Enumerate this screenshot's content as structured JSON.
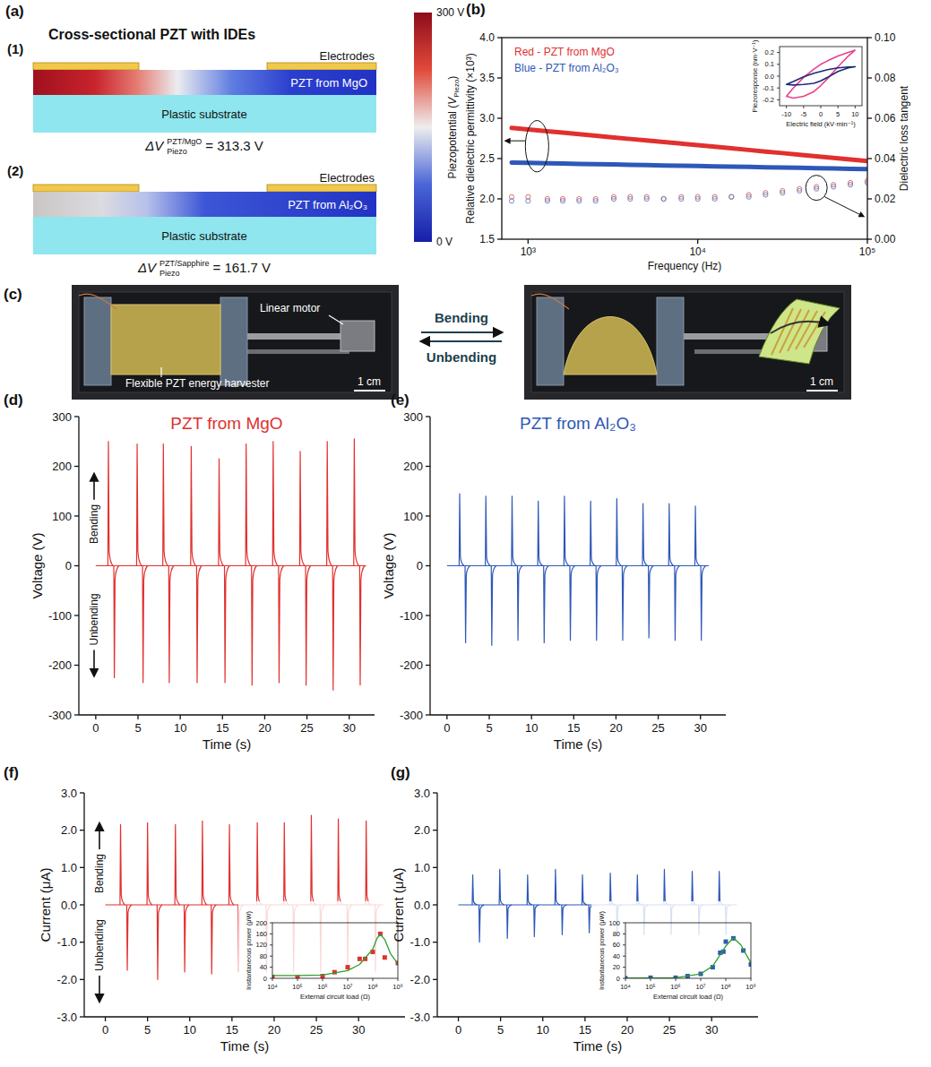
{
  "diagram_a": {
    "panel": "(a)",
    "title": "Cross-sectional PZT with IDEs",
    "structures": [
      {
        "label": "(1)",
        "electrodes": "Electrodes",
        "layer": "PZT from MgO",
        "substrate": "Plastic substrate",
        "delta_v": [
          "ΔV",
          "PZT/MgO",
          "Piezo",
          "= 313.3 V"
        ]
      },
      {
        "label": "(2)",
        "electrodes": "Electrodes",
        "layer": "PZT from Al₂O₃",
        "substrate": "Plastic substrate",
        "delta_v": [
          "ΔV",
          "PZT/Sapphire",
          "Piezo",
          "= 161.7 V"
        ]
      }
    ],
    "colorbar": {
      "title": [
        "Piezopotential (",
        "V",
        "Piezo",
        ")"
      ],
      "range": [
        0,
        300
      ],
      "ticks": [
        {
          "value": 300,
          "label": "300 V"
        },
        {
          "value": 0,
          "label": "0 V"
        }
      ]
    }
  },
  "photo_c": {
    "panel": "(c)",
    "labels": [
      "Linear motor",
      "Flexible PZT energy harvester"
    ],
    "arrows": [
      "Bending",
      "Unbending"
    ],
    "scale_bars": [
      "1 cm",
      "1 cm"
    ]
  },
  "chart_data": [
    {
      "panel": "(b)",
      "type": "line",
      "xlabel": "Frequency (Hz)",
      "ylabel": "Relative dielectric permittivity (×10³)",
      "y2label": "Dielectric loss tangent",
      "log": "x",
      "legend": "upper left",
      "xlim": [
        700,
        100000
      ],
      "xticks": [
        {
          "value": 1000,
          "label": "10³"
        },
        {
          "value": 10000,
          "label": "10⁴"
        },
        {
          "value": 100000,
          "label": "10⁵"
        }
      ],
      "ylim": [
        1.5,
        4
      ],
      "yticks": [
        1.5,
        {
          "value": 2,
          "label": "2.0"
        },
        2.5,
        {
          "value": 3,
          "label": "3.0"
        },
        3.5,
        {
          "value": 4,
          "label": "4.0"
        }
      ],
      "y2lim": [
        0,
        0.1
      ],
      "y2ticks": [
        {
          "value": 0,
          "label": "0.00"
        },
        0.02,
        0.04,
        0.06,
        0.08,
        {
          "value": 0.1,
          "label": "0.10"
        }
      ],
      "x": [
        800,
        1000,
        1300,
        1600,
        2000,
        2500,
        3200,
        4000,
        5000,
        6300,
        8000,
        10000,
        12600,
        15800,
        20000,
        25100,
        31600,
        39800,
        50100,
        63100,
        79400,
        100000
      ],
      "series": [
        {
          "name": "Red - PZT from MgO",
          "color": "#e0312f",
          "values": [
            2.88,
            2.861,
            2.839,
            2.821,
            2.802,
            2.783,
            2.762,
            2.743,
            2.724,
            2.705,
            2.685,
            2.666,
            2.646,
            2.627,
            2.607,
            2.587,
            2.568,
            2.548,
            2.529,
            2.509,
            2.49,
            2.47
          ]
        },
        {
          "name": "Blue - PZT from Al₂O₃",
          "color": "#2e58b8",
          "values": [
            2.45,
            2.446,
            2.442,
            2.438,
            2.434,
            2.431,
            2.427,
            2.423,
            2.419,
            2.415,
            2.411,
            2.408,
            2.404,
            2.4,
            2.396,
            2.392,
            2.388,
            2.385,
            2.381,
            2.377,
            2.373,
            2.37
          ]
        },
        {
          "color": "#e06060",
          "axis": "y2",
          "type": "scatter",
          "marker": "open-circle",
          "values": [
            0.021,
            0.021,
            0.02,
            0.02,
            0.02,
            0.02,
            0.021,
            0.021,
            0.021,
            0.02,
            0.021,
            0.021,
            0.021,
            0.021,
            0.022,
            0.023,
            0.024,
            0.025,
            0.026,
            0.027,
            0.028,
            0.029
          ]
        },
        {
          "color": "#5f7fc0",
          "axis": "y2",
          "type": "scatter",
          "marker": "open-circle",
          "values": [
            0.019,
            0.019,
            0.019,
            0.019,
            0.019,
            0.019,
            0.02,
            0.02,
            0.02,
            0.02,
            0.02,
            0.02,
            0.02,
            0.021,
            0.021,
            0.022,
            0.023,
            0.024,
            0.025,
            0.026,
            0.027,
            0.028
          ]
        }
      ]
    },
    {
      "type": "line",
      "xlabel": "Electric field (kV·min⁻¹)",
      "ylabel": "Piezoresponse (nm·V⁻¹)",
      "xlim": [
        -12,
        12
      ],
      "xticks": [
        -10,
        -5,
        0,
        5,
        10
      ],
      "ylim": [
        -0.25,
        0.25
      ],
      "yticks": [
        -0.2,
        -0.1,
        {
          "value": 0,
          "label": "0.0"
        },
        0.1,
        0.2
      ],
      "series": [
        {
          "color": "#e8428c",
          "x": [
            -10,
            -8,
            -5,
            -2,
            0,
            2,
            5,
            8,
            10,
            8,
            5,
            2,
            0,
            -2,
            -5,
            -8,
            -10
          ],
          "values": [
            -0.17,
            -0.1,
            -0.01,
            0.06,
            0.1,
            0.13,
            0.17,
            0.2,
            0.22,
            0.17,
            0.08,
            -0.02,
            -0.08,
            -0.13,
            -0.17,
            -0.185,
            -0.17
          ]
        },
        {
          "color": "#1c2a7a",
          "x": [
            -10,
            -8,
            -5,
            -2,
            0,
            2,
            5,
            8,
            10,
            8,
            5,
            2,
            0,
            -2,
            -5,
            -8,
            -10
          ],
          "values": [
            -0.07,
            -0.045,
            -0.005,
            0.025,
            0.04,
            0.055,
            0.07,
            0.078,
            0.08,
            0.07,
            0.04,
            -0.01,
            -0.04,
            -0.06,
            -0.07,
            -0.075,
            -0.07
          ]
        }
      ]
    },
    {
      "panel": "(d)",
      "type": "spike",
      "title": "PZT from MgO",
      "xlabel": "Time (s)",
      "ylabel": "Voltage (V)",
      "annotations": [
        "Bending",
        "Unbending"
      ],
      "xlim": [
        -2,
        33
      ],
      "xticks": [
        0,
        5,
        10,
        15,
        20,
        25,
        30
      ],
      "ylim": [
        -300,
        300
      ],
      "yticks": [
        -300,
        -200,
        -100,
        0,
        100,
        200,
        300
      ],
      "series": [
        {
          "color": "#e0312f",
          "x": [
            0,
            1.5,
            2.2,
            4.9,
            5.6,
            8.0,
            8.7,
            11.3,
            12.0,
            14.6,
            15.3,
            17.8,
            18.5,
            21.0,
            21.7,
            24.2,
            24.9,
            27.4,
            28.1,
            30.6,
            31.3,
            32
          ],
          "values": [
            0,
            250,
            -225,
            245,
            -235,
            245,
            -235,
            240,
            -235,
            215,
            -235,
            245,
            -240,
            250,
            -235,
            230,
            -240,
            250,
            -250,
            255,
            -240,
            0
          ]
        }
      ]
    },
    {
      "panel": "(e)",
      "type": "spike",
      "title": "PZT from Al₂O₃",
      "xlabel": "Time (s)",
      "ylabel": "Voltage (V)",
      "xlim": [
        -2,
        33
      ],
      "xticks": [
        0,
        5,
        10,
        15,
        20,
        25,
        30
      ],
      "ylim": [
        -300,
        300
      ],
      "yticks": [
        -300,
        -200,
        -100,
        0,
        100,
        200,
        300
      ],
      "series": [
        {
          "color": "#2e58b8",
          "x": [
            0,
            1.5,
            2.2,
            4.6,
            5.3,
            7.7,
            8.4,
            10.8,
            11.5,
            13.9,
            14.6,
            17.0,
            17.7,
            20.1,
            20.8,
            23.2,
            23.9,
            26.3,
            27.0,
            29.4,
            30.1,
            31
          ],
          "values": [
            0,
            145,
            -155,
            140,
            -160,
            140,
            -150,
            130,
            -155,
            140,
            -150,
            130,
            -150,
            135,
            -150,
            125,
            -145,
            125,
            -150,
            120,
            -150,
            0
          ]
        }
      ]
    },
    {
      "panel": "(f)",
      "type": "spike",
      "xlabel": "Time (s)",
      "ylabel": "Current (μA)",
      "annotations": [
        "Bending",
        "Unbending"
      ],
      "xlim": [
        -2.5,
        35.5
      ],
      "xticks": [
        0,
        5,
        10,
        15,
        20,
        25,
        30
      ],
      "ylim": [
        -3,
        3
      ],
      "yticks": [
        {
          "value": -3,
          "label": "-3.0"
        },
        {
          "value": -2,
          "label": "-2.0"
        },
        {
          "value": -1,
          "label": "-1.0"
        },
        {
          "value": 0,
          "label": "0.0"
        },
        {
          "value": 1,
          "label": "1.0"
        },
        {
          "value": 2,
          "label": "2.0"
        },
        {
          "value": 3,
          "label": "3.0"
        }
      ],
      "series": [
        {
          "color": "#e0312f",
          "x": [
            0,
            1.8,
            2.6,
            5.0,
            6.2,
            8.3,
            9.4,
            11.5,
            12.6,
            14.7,
            15.8,
            18.0,
            19.1,
            21.2,
            22.3,
            24.4,
            25.5,
            27.6,
            28.7,
            30.9,
            32.0,
            33
          ],
          "values": [
            0,
            2.15,
            -1.75,
            2.2,
            -2.0,
            2.15,
            -1.8,
            2.25,
            -1.85,
            2.15,
            -1.8,
            2.2,
            -1.8,
            2.2,
            -1.8,
            2.4,
            -1.8,
            2.3,
            -1.8,
            2.25,
            -1.8,
            0
          ]
        }
      ]
    },
    {
      "type": "scatter",
      "xlabel": "External circuit load (Ω)",
      "ylabel": "Instantaneous power (μW)",
      "log": "x",
      "xlim": [
        10000,
        1000000000
      ],
      "xticks": [
        {
          "value": 10000,
          "label": "10⁴"
        },
        {
          "value": 100000,
          "label": "10⁵"
        },
        {
          "value": 1000000,
          "label": "10⁶"
        },
        {
          "value": 10000000,
          "label": "10⁷"
        },
        {
          "value": 100000000,
          "label": "10⁸"
        },
        {
          "value": 1000000000,
          "label": "10⁹"
        }
      ],
      "ylim": [
        0,
        200
      ],
      "yticks": [
        0,
        40,
        80,
        120,
        160,
        200
      ],
      "series": [
        {
          "color": "#e0312f",
          "marker": "square",
          "x": [
            10000,
            100000,
            1000000,
            3000000,
            10000000,
            30000000,
            50000000,
            100000000,
            200000000,
            300000000,
            1000000000
          ],
          "values": [
            5,
            3,
            8,
            22,
            40,
            70,
            70,
            95,
            160,
            75,
            55
          ]
        },
        {
          "type": "line",
          "color": "#2ca02c",
          "x": [
            10000,
            100000,
            1000000,
            10000000,
            30000000,
            100000000,
            150000000,
            200000000,
            300000000,
            500000000,
            1000000000
          ],
          "values": [
            10,
            10,
            12,
            28,
            50,
            105,
            145,
            158,
            140,
            90,
            52
          ]
        }
      ]
    },
    {
      "panel": "(g)",
      "type": "spike",
      "xlabel": "Time (s)",
      "ylabel": "Current (μA)",
      "xlim": [
        -2.5,
        35.5
      ],
      "xticks": [
        0,
        5,
        10,
        15,
        20,
        25,
        30
      ],
      "ylim": [
        -3,
        3
      ],
      "yticks": [
        {
          "value": -3,
          "label": "-3.0"
        },
        {
          "value": -2,
          "label": "-2.0"
        },
        {
          "value": -1,
          "label": "-1.0"
        },
        {
          "value": 0,
          "label": "0.0"
        },
        {
          "value": 1,
          "label": "1.0"
        },
        {
          "value": 2,
          "label": "2.0"
        },
        {
          "value": 3,
          "label": "3.0"
        }
      ],
      "series": [
        {
          "color": "#2e58b8",
          "x": [
            0,
            1.7,
            2.5,
            4.9,
            5.8,
            8.2,
            9.0,
            11.5,
            12.3,
            14.7,
            15.5,
            18.0,
            18.8,
            21.2,
            22.0,
            24.4,
            25.2,
            27.7,
            28.5,
            30.9,
            31.7,
            33
          ],
          "values": [
            0,
            0.8,
            -1.0,
            0.95,
            -0.9,
            0.8,
            -0.85,
            0.95,
            -0.8,
            0.8,
            -0.75,
            0.85,
            -0.8,
            0.8,
            -0.8,
            0.95,
            -0.8,
            0.9,
            -0.8,
            0.9,
            -0.8,
            0
          ]
        }
      ]
    },
    {
      "type": "scatter",
      "xlabel": "External circuit load (Ω)",
      "ylabel": "Instantaneous power (μW)",
      "log": "x",
      "xlim": [
        10000,
        1000000000
      ],
      "xticks": [
        {
          "value": 10000,
          "label": "10⁴"
        },
        {
          "value": 100000,
          "label": "10⁵"
        },
        {
          "value": 1000000,
          "label": "10⁶"
        },
        {
          "value": 10000000,
          "label": "10⁷"
        },
        {
          "value": 100000000,
          "label": "10⁸"
        },
        {
          "value": 1000000000,
          "label": "10⁹"
        }
      ],
      "ylim": [
        0,
        100
      ],
      "yticks": [
        0,
        20,
        40,
        60,
        80,
        100
      ],
      "series": [
        {
          "color": "#2e58b8",
          "marker": "square",
          "x": [
            10000,
            100000,
            1000000,
            3000000,
            10000000,
            30000000,
            60000000,
            80000000,
            100000000,
            200000000,
            500000000,
            1000000000
          ],
          "values": [
            0,
            1,
            1,
            4,
            8,
            20,
            46,
            48,
            66,
            72,
            50,
            25
          ]
        },
        {
          "type": "line",
          "color": "#2ca02c",
          "x": [
            10000,
            1000000,
            10000000,
            30000000,
            100000000,
            200000000,
            400000000,
            700000000,
            1000000000
          ],
          "values": [
            0,
            1,
            8,
            22,
            58,
            73,
            60,
            40,
            28
          ]
        }
      ]
    }
  ]
}
